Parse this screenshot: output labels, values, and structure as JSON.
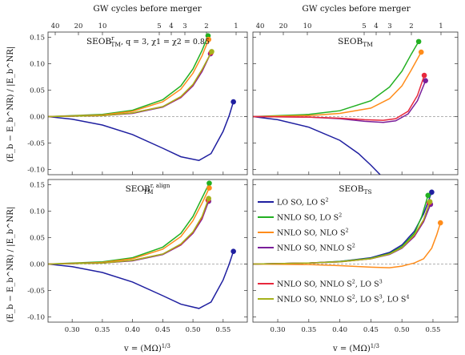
{
  "figure": {
    "top_axis_label": "GW cycles before merger",
    "bottom_axis_label": "v = (MΩ)",
    "bottom_axis_exp": "1/3",
    "y_axis_label": "(E",
    "y_axis_label_full": "(E_b − E_b^NR) / |E_b^NR|",
    "panel_titles": [
      "SEOB",
      "SEOB",
      "SEOB",
      "SEOB"
    ],
    "panel_title_subs": [
      "TM",
      "TM",
      "TM",
      "TS"
    ],
    "panel_title_sups": [
      "r",
      "",
      "r, align",
      ""
    ],
    "panel_title_extra": [
      ", q = 3, χ1 = χ2 = 0.85",
      "",
      "",
      ""
    ]
  },
  "legend": {
    "items": [
      {
        "name": "LO SO, LO S",
        "sup": "2",
        "tail": "",
        "color": "#1f1fa0"
      },
      {
        "name": "NNLO SO, LO S",
        "sup": "2",
        "tail": "",
        "color": "#22b022"
      },
      {
        "name": "NNLO SO, NLO S",
        "sup": "2",
        "tail": "",
        "color": "#ff8c1a"
      },
      {
        "name": "NNLO SO, NNLO S",
        "sup": "2",
        "tail": "",
        "color": "#7a1f9a"
      },
      {
        "name": "NNLO SO, NNLO S",
        "sup": "2",
        "tail": ", LO S",
        "sup2": "3",
        "color": "#e8283c"
      },
      {
        "name": "NNLO SO, NNLO S",
        "sup": "2",
        "tail": ", LO S",
        "sup2": "3",
        "tail2": ", LO S",
        "sup3": "4",
        "color": "#a5b21c"
      }
    ]
  },
  "chart_data": [
    {
      "type": "line",
      "title": "SEOB_TM^r, q = 3, χ1 = χ2 = 0.85",
      "xlabel": "",
      "ylabel": "(E_b − E_b^NR) / |E_b^NR|",
      "xlim": [
        0.26,
        0.59
      ],
      "ylim": [
        -0.11,
        0.16
      ],
      "top_ticks": [
        "40",
        "20",
        "10",
        "5",
        "4",
        "3",
        "2",
        "1"
      ],
      "yticks": [
        "0.15",
        "0.10",
        "0.05",
        "0.00",
        "-0.05",
        "-0.10"
      ],
      "series": [
        {
          "name": "LO SO, LO S^2",
          "color": "#1f1fa0",
          "x": [
            0.26,
            0.3,
            0.35,
            0.4,
            0.45,
            0.48,
            0.51,
            0.53,
            0.55,
            0.56,
            0.567
          ],
          "y": [
            0.0,
            -0.005,
            -0.016,
            -0.034,
            -0.06,
            -0.076,
            -0.083,
            -0.07,
            -0.028,
            0.002,
            0.028
          ]
        },
        {
          "name": "NNLO SO, LO S^2",
          "color": "#22b022",
          "x": [
            0.26,
            0.35,
            0.4,
            0.45,
            0.48,
            0.5,
            0.515,
            0.525
          ],
          "y": [
            0.0,
            0.004,
            0.012,
            0.032,
            0.058,
            0.09,
            0.125,
            0.153
          ]
        },
        {
          "name": "NNLO SO, NLO S^2",
          "color": "#ff8c1a",
          "x": [
            0.26,
            0.35,
            0.4,
            0.45,
            0.48,
            0.5,
            0.515,
            0.526
          ],
          "y": [
            0.0,
            0.003,
            0.01,
            0.028,
            0.052,
            0.082,
            0.115,
            0.146
          ]
        },
        {
          "name": "NNLO SO, NNLO S^2",
          "color": "#7a1f9a",
          "x": [
            0.26,
            0.35,
            0.4,
            0.45,
            0.48,
            0.5,
            0.515,
            0.529
          ],
          "y": [
            0.0,
            0.002,
            0.006,
            0.018,
            0.036,
            0.058,
            0.085,
            0.119
          ]
        },
        {
          "name": "NNLO SO, NNLO S^2, LO S^3",
          "color": "#e8283c",
          "x": [
            0.26,
            0.35,
            0.4,
            0.45,
            0.48,
            0.5,
            0.515,
            0.53
          ],
          "y": [
            0.0,
            0.002,
            0.007,
            0.019,
            0.037,
            0.06,
            0.088,
            0.121
          ]
        },
        {
          "name": "NNLO SO, NNLO S^2, LO S^3, LO S^4",
          "color": "#a5b21c",
          "x": [
            0.26,
            0.35,
            0.4,
            0.45,
            0.48,
            0.5,
            0.515,
            0.531
          ],
          "y": [
            0.0,
            0.002,
            0.007,
            0.019,
            0.038,
            0.061,
            0.089,
            0.123
          ]
        }
      ]
    },
    {
      "type": "line",
      "title": "SEOB_TM",
      "xlabel": "",
      "ylabel": "",
      "xlim": [
        0.26,
        0.59
      ],
      "ylim": [
        -0.11,
        0.16
      ],
      "top_ticks": [
        "40",
        "20",
        "10",
        "5",
        "4",
        "3",
        "2",
        "1"
      ],
      "series": [
        {
          "name": "LO SO, LO S^2",
          "color": "#1f1fa0",
          "x": [
            0.26,
            0.3,
            0.35,
            0.4,
            0.43,
            0.45,
            0.465
          ],
          "y": [
            0.0,
            -0.006,
            -0.02,
            -0.045,
            -0.07,
            -0.092,
            -0.11
          ]
        },
        {
          "name": "NNLO SO, LO S^2",
          "color": "#22b022",
          "x": [
            0.26,
            0.35,
            0.4,
            0.45,
            0.48,
            0.5,
            0.515,
            0.527
          ],
          "y": [
            0.0,
            0.004,
            0.011,
            0.03,
            0.056,
            0.086,
            0.118,
            0.142
          ]
        },
        {
          "name": "NNLO SO, NLO S^2",
          "color": "#ff8c1a",
          "x": [
            0.26,
            0.35,
            0.4,
            0.45,
            0.48,
            0.5,
            0.515,
            0.531
          ],
          "y": [
            0.0,
            0.002,
            0.006,
            0.016,
            0.034,
            0.058,
            0.088,
            0.122
          ]
        },
        {
          "name": "NNLO SO, NNLO S^2",
          "color": "#7a1f9a",
          "x": [
            0.26,
            0.35,
            0.4,
            0.44,
            0.47,
            0.49,
            0.51,
            0.525,
            0.538
          ],
          "y": [
            0.0,
            -0.001,
            -0.004,
            -0.009,
            -0.011,
            -0.008,
            0.005,
            0.03,
            0.068
          ]
        },
        {
          "name": "NNLO SO, NNLO S^2, LO S^3",
          "color": "#e8283c",
          "x": [
            0.26,
            0.35,
            0.4,
            0.44,
            0.47,
            0.49,
            0.51,
            0.525,
            0.536
          ],
          "y": [
            0.0,
            -0.001,
            -0.003,
            -0.006,
            -0.007,
            -0.004,
            0.01,
            0.04,
            0.078
          ]
        }
      ]
    },
    {
      "type": "line",
      "title": "SEOB_TM^r, align",
      "xlabel": "v = (MΩ)^1/3",
      "ylabel": "(E_b − E_b^NR) / |E_b^NR|",
      "xlim": [
        0.26,
        0.59
      ],
      "ylim": [
        -0.11,
        0.16
      ],
      "xticks": [
        "0.30",
        "0.35",
        "0.40",
        "0.45",
        "0.50",
        "0.55"
      ],
      "yticks": [
        "0.15",
        "0.10",
        "0.05",
        "0.00",
        "-0.05",
        "-0.10"
      ],
      "series": [
        {
          "name": "LO SO, LO S^2",
          "color": "#1f1fa0",
          "x": [
            0.26,
            0.3,
            0.35,
            0.4,
            0.45,
            0.48,
            0.51,
            0.53,
            0.55,
            0.56,
            0.567
          ],
          "y": [
            0.0,
            -0.005,
            -0.016,
            -0.034,
            -0.06,
            -0.076,
            -0.084,
            -0.072,
            -0.03,
            0.0,
            0.024
          ]
        },
        {
          "name": "NNLO SO, LO S^2",
          "color": "#22b022",
          "x": [
            0.26,
            0.35,
            0.4,
            0.45,
            0.48,
            0.5,
            0.515,
            0.527
          ],
          "y": [
            0.0,
            0.004,
            0.012,
            0.032,
            0.058,
            0.09,
            0.125,
            0.153
          ]
        },
        {
          "name": "NNLO SO, NLO S^2",
          "color": "#ff8c1a",
          "x": [
            0.26,
            0.35,
            0.4,
            0.45,
            0.48,
            0.5,
            0.515,
            0.527
          ],
          "y": [
            0.0,
            0.003,
            0.01,
            0.028,
            0.052,
            0.082,
            0.115,
            0.144
          ]
        },
        {
          "name": "NNLO SO, NNLO S^2",
          "color": "#7a1f9a",
          "x": [
            0.26,
            0.35,
            0.4,
            0.45,
            0.48,
            0.5,
            0.515,
            0.526
          ],
          "y": [
            0.0,
            0.002,
            0.006,
            0.018,
            0.036,
            0.058,
            0.085,
            0.119
          ]
        },
        {
          "name": "NNLO SO, NNLO S^2, LO S^3",
          "color": "#e8283c",
          "x": [
            0.26,
            0.35,
            0.4,
            0.45,
            0.48,
            0.5,
            0.515,
            0.525
          ],
          "y": [
            0.0,
            0.002,
            0.007,
            0.019,
            0.037,
            0.06,
            0.088,
            0.121
          ]
        },
        {
          "name": "NNLO SO, NNLO S^2, LO S^3, LO S^4",
          "color": "#a5b21c",
          "x": [
            0.26,
            0.35,
            0.4,
            0.45,
            0.48,
            0.5,
            0.515,
            0.526
          ],
          "y": [
            0.0,
            0.002,
            0.007,
            0.019,
            0.038,
            0.061,
            0.09,
            0.124
          ]
        }
      ]
    },
    {
      "type": "line",
      "title": "SEOB_TS",
      "xlabel": "v = (MΩ)^1/3",
      "ylabel": "",
      "xlim": [
        0.26,
        0.59
      ],
      "ylim": [
        -0.11,
        0.16
      ],
      "xticks": [
        "0.30",
        "0.35",
        "0.40",
        "0.45",
        "0.50",
        "0.55"
      ],
      "series": [
        {
          "name": "LO SO, LO S^2",
          "color": "#1f1fa0",
          "x": [
            0.26,
            0.35,
            0.4,
            0.45,
            0.48,
            0.5,
            0.52,
            0.535,
            0.548
          ],
          "y": [
            0.0,
            0.002,
            0.005,
            0.012,
            0.022,
            0.036,
            0.062,
            0.095,
            0.136
          ]
        },
        {
          "name": "NNLO SO, LO S^2",
          "color": "#22b022",
          "x": [
            0.26,
            0.35,
            0.4,
            0.45,
            0.48,
            0.5,
            0.52,
            0.532,
            0.542
          ],
          "y": [
            0.0,
            0.002,
            0.005,
            0.011,
            0.02,
            0.033,
            0.058,
            0.09,
            0.13
          ]
        },
        {
          "name": "NNLO SO, NLO S^2",
          "color": "#ff8c1a",
          "x": [
            0.26,
            0.35,
            0.4,
            0.45,
            0.48,
            0.5,
            0.52,
            0.535,
            0.548,
            0.556,
            0.562
          ],
          "y": [
            0.0,
            -0.001,
            -0.003,
            -0.006,
            -0.007,
            -0.004,
            0.002,
            0.01,
            0.03,
            0.055,
            0.078
          ]
        },
        {
          "name": "NNLO SO, NNLO S^2",
          "color": "#7a1f9a",
          "x": [
            0.26,
            0.35,
            0.4,
            0.45,
            0.48,
            0.5,
            0.52,
            0.535,
            0.546
          ],
          "y": [
            0.0,
            0.002,
            0.004,
            0.01,
            0.018,
            0.03,
            0.052,
            0.08,
            0.113
          ]
        },
        {
          "name": "NNLO SO, NNLO S^2, LO S^3",
          "color": "#e8283c",
          "x": [
            0.26,
            0.35,
            0.4,
            0.45,
            0.48,
            0.5,
            0.52,
            0.535,
            0.544
          ],
          "y": [
            0.0,
            0.002,
            0.004,
            0.01,
            0.019,
            0.031,
            0.054,
            0.083,
            0.116
          ]
        },
        {
          "name": "NNLO SO, NNLO S^2, LO S^3, LO S^4",
          "color": "#a5b21c",
          "x": [
            0.26,
            0.35,
            0.4,
            0.45,
            0.48,
            0.5,
            0.52,
            0.535,
            0.545
          ],
          "y": [
            0.0,
            0.002,
            0.004,
            0.01,
            0.019,
            0.031,
            0.055,
            0.084,
            0.118
          ]
        }
      ]
    }
  ]
}
